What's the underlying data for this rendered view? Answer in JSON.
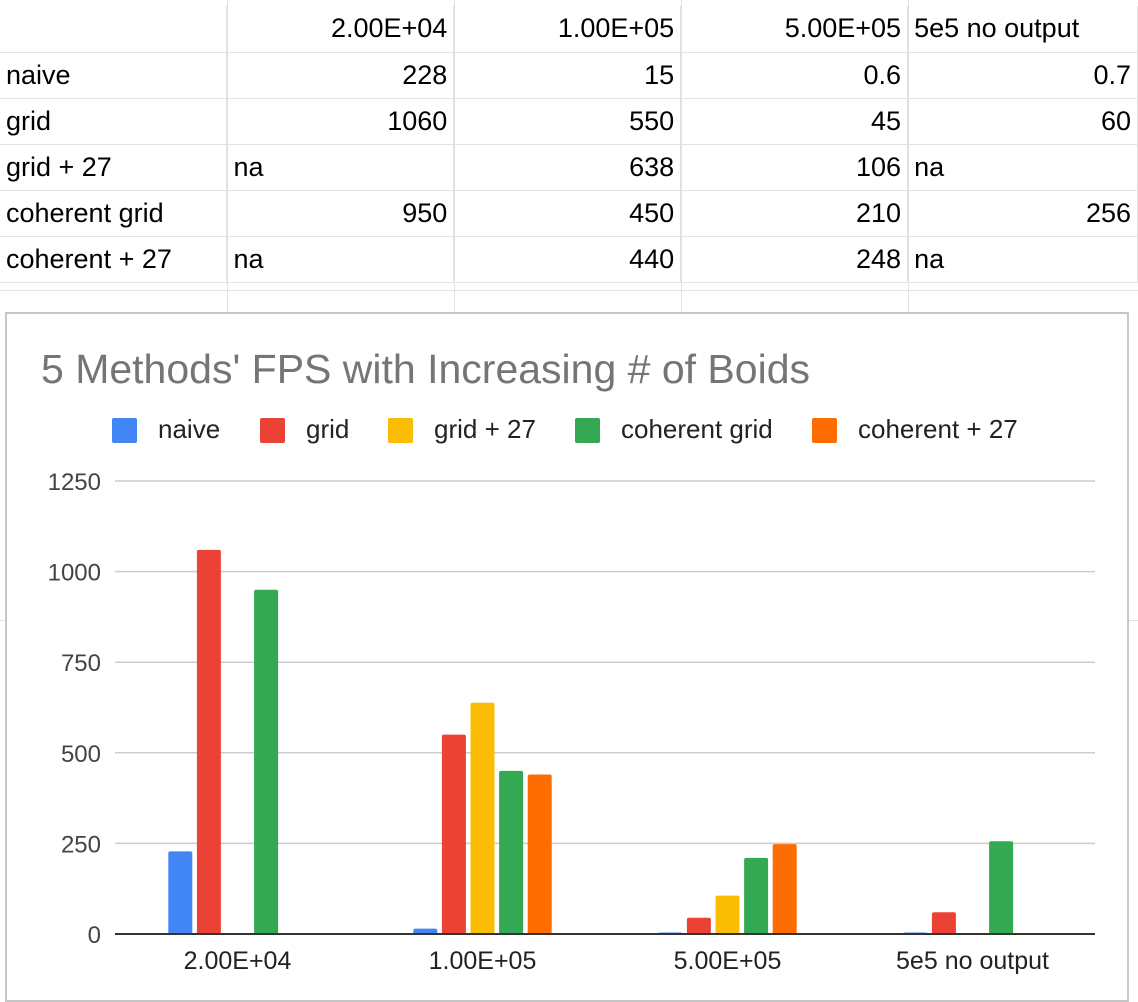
{
  "table": {
    "header": [
      "",
      "2.00E+04",
      "1.00E+05",
      "5.00E+05",
      "5e5 no output"
    ],
    "rows": [
      [
        "naive",
        "228",
        "15",
        "0.6",
        "0.7"
      ],
      [
        "grid",
        "1060",
        "550",
        "45",
        "60"
      ],
      [
        "grid + 27",
        "na",
        "638",
        "106",
        "na"
      ],
      [
        "coherent grid",
        "950",
        "450",
        "210",
        "256"
      ],
      [
        "coherent + 27",
        "na",
        "440",
        "248",
        "na"
      ]
    ]
  },
  "colors": {
    "naive": "#4285f4",
    "grid": "#ea4335",
    "grid + 27": "#fbbc04",
    "coherent grid": "#34a853",
    "coherent + 27": "#ff6d01"
  },
  "chart_data": {
    "type": "bar",
    "title": "5 Methods' FPS with Increasing # of Boids",
    "categories": [
      "2.00E+04",
      "1.00E+05",
      "5.00E+05",
      "5e5 no output"
    ],
    "series": [
      {
        "name": "naive",
        "values": [
          228,
          15,
          0.6,
          0.7
        ]
      },
      {
        "name": "grid",
        "values": [
          1060,
          550,
          45,
          60
        ]
      },
      {
        "name": "grid + 27",
        "values": [
          null,
          638,
          106,
          null
        ]
      },
      {
        "name": "coherent grid",
        "values": [
          950,
          450,
          210,
          256
        ]
      },
      {
        "name": "coherent + 27",
        "values": [
          null,
          440,
          248,
          null
        ]
      }
    ],
    "yticks": [
      "0",
      "250",
      "500",
      "750",
      "1000",
      "1250"
    ],
    "ylim": [
      0,
      1250
    ],
    "legend": "top",
    "grid": true
  }
}
